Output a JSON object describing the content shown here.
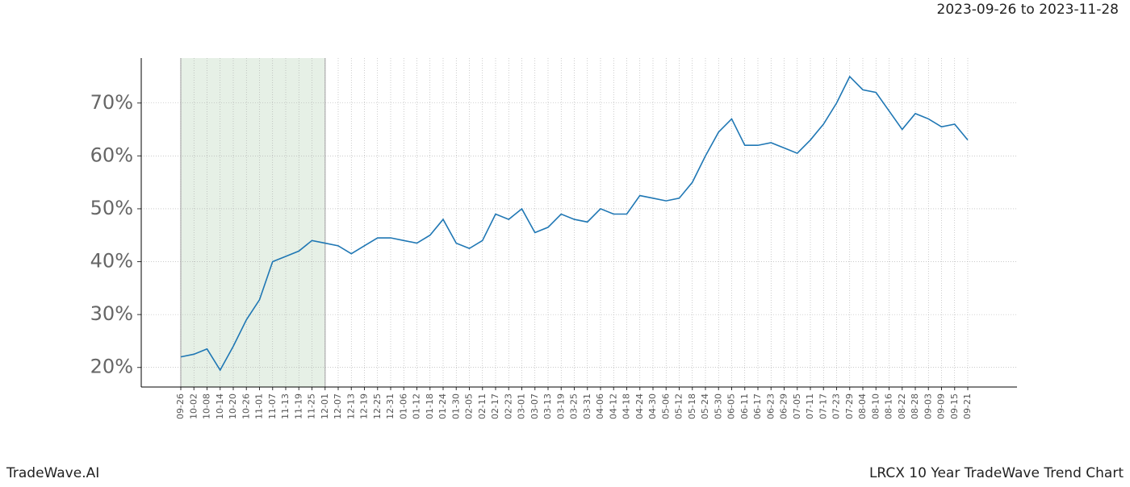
{
  "chart_data": {
    "type": "line",
    "title": "2023-09-26 to 2023-11-28",
    "footer_left": "TradeWave.AI",
    "footer_right": "LRCX 10 Year TradeWave Trend Chart",
    "categories": [
      "09-26",
      "10-02",
      "10-08",
      "10-14",
      "10-20",
      "10-26",
      "11-01",
      "11-07",
      "11-13",
      "11-19",
      "11-25",
      "12-01",
      "12-07",
      "12-13",
      "12-19",
      "12-25",
      "12-31",
      "01-06",
      "01-12",
      "01-18",
      "01-24",
      "01-30",
      "02-05",
      "02-11",
      "02-17",
      "02-23",
      "03-01",
      "03-07",
      "03-13",
      "03-19",
      "03-25",
      "03-31",
      "04-06",
      "04-12",
      "04-18",
      "04-24",
      "04-30",
      "05-06",
      "05-12",
      "05-18",
      "05-24",
      "05-30",
      "06-05",
      "06-11",
      "06-17",
      "06-23",
      "06-29",
      "07-05",
      "07-11",
      "07-17",
      "07-23",
      "07-29",
      "08-04",
      "08-10",
      "08-16",
      "08-22",
      "08-28",
      "09-03",
      "09-09",
      "09-15",
      "09-21"
    ],
    "series": [
      {
        "color": "#1f77b4",
        "values": [
          22,
          22.5,
          23.5,
          19.5,
          24,
          29,
          32.8,
          40,
          41,
          42,
          44,
          43.5,
          43,
          41.5,
          43,
          44.5,
          44.5,
          44,
          43.5,
          45,
          48,
          43.5,
          42.5,
          44,
          49,
          48,
          50,
          45.5,
          46.5,
          49,
          48,
          47.5,
          50,
          49,
          49,
          52.5,
          52,
          51.5,
          52,
          55,
          60,
          64.5,
          67,
          62,
          62,
          62.5,
          61.5,
          60.5,
          63,
          66,
          70,
          75,
          72.5,
          72,
          68.5,
          65,
          68,
          67,
          65.5,
          66,
          63
        ]
      }
    ],
    "shade": [
      "09-26",
      "12-01"
    ],
    "shade_color": "#e6f0e6",
    "ylim": [
      16.3,
      78.5
    ],
    "yticks": [
      {
        "value": 20,
        "label": "20%"
      },
      {
        "value": 30,
        "label": "30%"
      },
      {
        "value": 40,
        "label": "40%"
      },
      {
        "value": 50,
        "label": "50%"
      },
      {
        "value": 60,
        "label": "60%"
      },
      {
        "value": 70,
        "label": "70%"
      }
    ],
    "grid": true
  }
}
